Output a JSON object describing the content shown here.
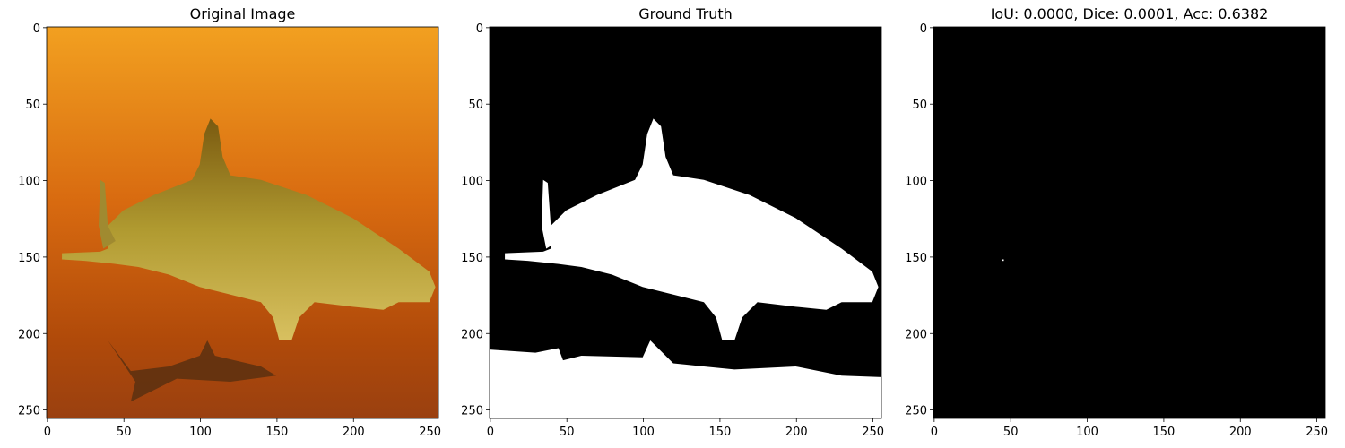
{
  "chart_data": [
    {
      "type": "image",
      "title": "Original Image",
      "xlim": [
        -0.5,
        255.5
      ],
      "ylim": [
        255.5,
        -0.5
      ],
      "xticks": [
        0,
        50,
        100,
        150,
        200,
        250
      ],
      "yticks": [
        0,
        50,
        100,
        150,
        200,
        250
      ]
    },
    {
      "type": "image",
      "title": "Ground Truth",
      "xlim": [
        -0.5,
        255.5
      ],
      "ylim": [
        255.5,
        -0.5
      ],
      "xticks": [
        0,
        50,
        100,
        150,
        200,
        250
      ],
      "yticks": [
        0,
        50,
        100,
        150,
        200,
        250
      ]
    },
    {
      "type": "image",
      "title": "IoU: 0.0000, Dice: 0.0001, Acc: 0.6382",
      "xlim": [
        -0.5,
        255.5
      ],
      "ylim": [
        255.5,
        -0.5
      ],
      "xticks": [
        0,
        50,
        100,
        150,
        200,
        250
      ],
      "yticks": [
        0,
        50,
        100,
        150,
        200,
        250
      ]
    }
  ]
}
